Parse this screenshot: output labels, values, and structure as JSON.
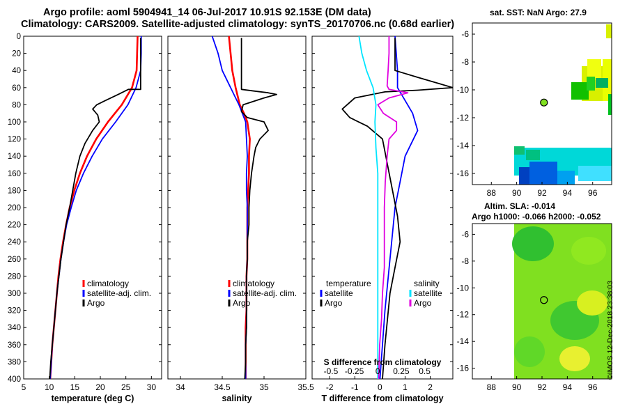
{
  "header": {
    "line1": "Argo profile: aoml 5904941_14 06-Jul-2017 10.91S 92.153E (DM data)",
    "line2": "Climatology: CARS2009. Satellite-adjusted climatology: synTS_20170706.nc (0.68d earlier)"
  },
  "colors": {
    "climatology": "#ff0000",
    "satellite": "#0000ff",
    "argo": "#000000",
    "sat_salinity": "#00e5ff",
    "argo_salinity": "#e000e0"
  },
  "side_maps": {
    "sst": {
      "title": "sat. SST: NaN Argo: 27.9"
    },
    "altimetry": {
      "title1": "Altim. SLA: -0.014",
      "title2": "Argo h1000: -0.066 h2000: -0.052"
    },
    "float_position": {
      "lon": 92.153,
      "lat": -10.91
    }
  },
  "timestamp": "©IMOS 12-Dec-2018 23:38:03",
  "chart_data": [
    {
      "type": "line",
      "name": "temperature",
      "xlabel": "temperature (deg C)",
      "ylabel": "",
      "xlim": [
        5,
        32
      ],
      "ylim": [
        400,
        0
      ],
      "xticks": [
        5,
        10,
        15,
        20,
        25,
        30
      ],
      "yticks": [
        0,
        20,
        40,
        60,
        80,
        100,
        120,
        140,
        160,
        180,
        200,
        220,
        240,
        260,
        280,
        300,
        320,
        340,
        360,
        380,
        400
      ],
      "legend": {
        "position": "bottom-right",
        "entries": [
          "climatology",
          "satellite-adj. clim.",
          "Argo"
        ]
      },
      "series": [
        {
          "name": "climatology",
          "color": "#ff0000",
          "points": [
            [
              27.3,
              0
            ],
            [
              27.2,
              20
            ],
            [
              27.1,
              40
            ],
            [
              26.2,
              60
            ],
            [
              24.2,
              80
            ],
            [
              21.5,
              100
            ],
            [
              19.2,
              120
            ],
            [
              17.4,
              140
            ],
            [
              16.0,
              160
            ],
            [
              14.9,
              180
            ],
            [
              14.0,
              200
            ],
            [
              13.3,
              220
            ],
            [
              12.7,
              240
            ],
            [
              12.2,
              260
            ],
            [
              11.8,
              280
            ],
            [
              11.5,
              300
            ],
            [
              11.2,
              320
            ],
            [
              10.9,
              340
            ],
            [
              10.6,
              360
            ],
            [
              10.4,
              380
            ],
            [
              10.2,
              400
            ]
          ]
        },
        {
          "name": "satellite-adj. clim.",
          "color": "#0000ff",
          "points": [
            [
              28.0,
              0
            ],
            [
              28.0,
              20
            ],
            [
              27.9,
              40
            ],
            [
              27.0,
              60
            ],
            [
              25.4,
              80
            ],
            [
              23.0,
              100
            ],
            [
              20.4,
              120
            ],
            [
              18.4,
              140
            ],
            [
              16.7,
              160
            ],
            [
              15.3,
              180
            ],
            [
              14.3,
              200
            ],
            [
              13.4,
              220
            ],
            [
              12.8,
              240
            ],
            [
              12.3,
              260
            ],
            [
              11.9,
              280
            ],
            [
              11.5,
              300
            ],
            [
              11.2,
              320
            ],
            [
              10.9,
              340
            ],
            [
              10.6,
              360
            ],
            [
              10.4,
              380
            ],
            [
              10.2,
              400
            ]
          ]
        },
        {
          "name": "Argo",
          "color": "#000000",
          "points": [
            [
              27.9,
              2
            ],
            [
              27.9,
              20
            ],
            [
              27.9,
              40
            ],
            [
              27.9,
              55
            ],
            [
              27.9,
              62
            ],
            [
              25.5,
              62
            ],
            [
              23.5,
              68
            ],
            [
              21.0,
              75
            ],
            [
              19.3,
              80
            ],
            [
              18.5,
              85
            ],
            [
              19.5,
              92
            ],
            [
              19.8,
              100
            ],
            [
              18.5,
              110
            ],
            [
              17.0,
              125
            ],
            [
              16.0,
              140
            ],
            [
              15.2,
              160
            ],
            [
              14.6,
              180
            ],
            [
              14.0,
              200
            ],
            [
              13.3,
              220
            ],
            [
              12.8,
              240
            ],
            [
              12.3,
              260
            ],
            [
              11.9,
              280
            ],
            [
              11.5,
              300
            ],
            [
              11.2,
              320
            ],
            [
              10.9,
              340
            ],
            [
              10.6,
              360
            ],
            [
              10.3,
              380
            ],
            [
              10.1,
              400
            ]
          ]
        }
      ]
    },
    {
      "type": "line",
      "name": "salinity",
      "xlabel": "salinity",
      "ylabel": "",
      "xlim": [
        33.85,
        35.5
      ],
      "ylim": [
        400,
        0
      ],
      "xticks": [
        34,
        34.5,
        35,
        35.5
      ],
      "legend": {
        "position": "bottom-right",
        "entries": [
          "climatology",
          "satellite-adj. clim.",
          "Argo"
        ]
      },
      "series": [
        {
          "name": "climatology",
          "color": "#ff0000",
          "points": [
            [
              34.58,
              0
            ],
            [
              34.6,
              20
            ],
            [
              34.62,
              40
            ],
            [
              34.66,
              60
            ],
            [
              34.71,
              80
            ],
            [
              34.76,
              90
            ],
            [
              34.8,
              100
            ],
            [
              34.83,
              120
            ],
            [
              34.82,
              140
            ],
            [
              34.82,
              160
            ],
            [
              34.81,
              180
            ],
            [
              34.8,
              200
            ],
            [
              34.8,
              220
            ],
            [
              34.8,
              240
            ],
            [
              34.8,
              260
            ],
            [
              34.79,
              280
            ],
            [
              34.79,
              300
            ],
            [
              34.79,
              320
            ],
            [
              34.78,
              340
            ],
            [
              34.78,
              360
            ],
            [
              34.78,
              380
            ],
            [
              34.78,
              400
            ]
          ]
        },
        {
          "name": "satellite-adj. clim.",
          "color": "#0000ff",
          "points": [
            [
              34.38,
              0
            ],
            [
              34.45,
              20
            ],
            [
              34.5,
              40
            ],
            [
              34.6,
              60
            ],
            [
              34.65,
              70
            ],
            [
              34.7,
              80
            ],
            [
              34.74,
              90
            ],
            [
              34.78,
              100
            ],
            [
              34.79,
              120
            ],
            [
              34.8,
              140
            ],
            [
              34.79,
              160
            ],
            [
              34.79,
              180
            ],
            [
              34.8,
              200
            ],
            [
              34.8,
              220
            ],
            [
              34.8,
              240
            ],
            [
              34.8,
              260
            ],
            [
              34.79,
              280
            ],
            [
              34.79,
              300
            ],
            [
              34.79,
              320
            ],
            [
              34.79,
              340
            ],
            [
              34.78,
              360
            ],
            [
              34.78,
              380
            ],
            [
              34.78,
              400
            ]
          ]
        },
        {
          "name": "Argo",
          "color": "#000000",
          "points": [
            [
              34.73,
              2
            ],
            [
              34.73,
              20
            ],
            [
              34.73,
              40
            ],
            [
              34.73,
              58
            ],
            [
              34.73,
              62
            ],
            [
              34.88,
              64
            ],
            [
              35.05,
              66
            ],
            [
              35.15,
              68
            ],
            [
              35.0,
              72
            ],
            [
              34.75,
              80
            ],
            [
              34.73,
              88
            ],
            [
              34.8,
              95
            ],
            [
              35.0,
              100
            ],
            [
              35.05,
              110
            ],
            [
              34.95,
              120
            ],
            [
              34.9,
              130
            ],
            [
              34.88,
              140
            ],
            [
              34.85,
              160
            ],
            [
              34.83,
              180
            ],
            [
              34.82,
              200
            ],
            [
              34.82,
              220
            ],
            [
              34.8,
              240
            ],
            [
              34.8,
              260
            ],
            [
              34.79,
              280
            ],
            [
              34.79,
              300
            ],
            [
              34.79,
              320
            ],
            [
              34.79,
              340
            ],
            [
              34.78,
              360
            ],
            [
              34.78,
              380
            ],
            [
              34.77,
              400
            ]
          ]
        }
      ]
    },
    {
      "type": "line",
      "name": "differences",
      "xlabel": "T difference from climatology",
      "x2label": "S difference from climatology",
      "xlim": [
        -2.7,
        2.9
      ],
      "x2lim": [
        -0.7,
        0.8
      ],
      "ylim": [
        400,
        0
      ],
      "xticks": [
        -2,
        -1,
        0,
        1,
        2
      ],
      "x2ticks": [
        -0.5,
        -0.25,
        0,
        0.25,
        0.5
      ],
      "legend": {
        "position": "bottom",
        "temperature_title": "temperature",
        "salinity_title": "salinity",
        "temperature_entries": [
          "satellite",
          "Argo"
        ],
        "salinity_entries": [
          "satellite",
          "Argo"
        ]
      },
      "series": [
        {
          "name": "T satellite",
          "axis": "T",
          "color": "#0000ff",
          "points": [
            [
              0.6,
              0
            ],
            [
              0.65,
              20
            ],
            [
              0.7,
              40
            ],
            [
              0.7,
              60
            ],
            [
              1.0,
              75
            ],
            [
              1.3,
              90
            ],
            [
              1.5,
              110
            ],
            [
              1.0,
              140
            ],
            [
              0.8,
              170
            ],
            [
              0.6,
              200
            ],
            [
              0.5,
              230
            ],
            [
              0.4,
              260
            ],
            [
              0.3,
              290
            ],
            [
              0.2,
              320
            ],
            [
              0.1,
              360
            ],
            [
              0.0,
              400
            ]
          ]
        },
        {
          "name": "T Argo",
          "axis": "T",
          "color": "#000000",
          "points": [
            [
              0.6,
              2
            ],
            [
              0.6,
              20
            ],
            [
              0.6,
              40
            ],
            [
              1.5,
              48
            ],
            [
              2.9,
              60
            ],
            [
              1.5,
              63
            ],
            [
              0.2,
              65
            ],
            [
              -1.0,
              72
            ],
            [
              -1.5,
              85
            ],
            [
              -1.2,
              95
            ],
            [
              -0.5,
              105
            ],
            [
              0.1,
              120
            ],
            [
              0.3,
              150
            ],
            [
              0.5,
              180
            ],
            [
              0.7,
              210
            ],
            [
              0.8,
              240
            ],
            [
              0.6,
              270
            ],
            [
              0.4,
              300
            ],
            [
              0.3,
              330
            ],
            [
              0.2,
              360
            ],
            [
              0.1,
              400
            ]
          ]
        },
        {
          "name": "S satellite",
          "axis": "S",
          "color": "#00e5ff",
          "points": [
            [
              -0.2,
              0
            ],
            [
              -0.17,
              20
            ],
            [
              -0.12,
              40
            ],
            [
              -0.05,
              60
            ],
            [
              -0.02,
              80
            ],
            [
              -0.03,
              100
            ],
            [
              -0.02,
              130
            ],
            [
              0.0,
              160
            ],
            [
              0.0,
              200
            ],
            [
              0.0,
              240
            ],
            [
              0.0,
              280
            ],
            [
              0.0,
              320
            ],
            [
              0.0,
              360
            ],
            [
              0.0,
              400
            ]
          ]
        },
        {
          "name": "S Argo",
          "axis": "S",
          "color": "#e000e0",
          "points": [
            [
              0.12,
              0
            ],
            [
              0.12,
              20
            ],
            [
              0.11,
              40
            ],
            [
              0.1,
              58
            ],
            [
              0.12,
              62
            ],
            [
              0.32,
              66
            ],
            [
              0.12,
              72
            ],
            [
              0.0,
              80
            ],
            [
              0.06,
              90
            ],
            [
              0.2,
              100
            ],
            [
              0.2,
              110
            ],
            [
              0.12,
              120
            ],
            [
              0.1,
              140
            ],
            [
              0.08,
              170
            ],
            [
              0.07,
              200
            ],
            [
              0.07,
              240
            ],
            [
              0.07,
              270
            ],
            [
              0.05,
              300
            ],
            [
              0.04,
              330
            ],
            [
              0.02,
              360
            ],
            [
              0.01,
              400
            ]
          ]
        }
      ]
    },
    {
      "type": "heatmap",
      "name": "sst-map",
      "title": "sat. SST: NaN Argo: 27.9",
      "xlim": [
        86.5,
        97.5
      ],
      "ylim": [
        -16.8,
        -5.2
      ],
      "xticks": [
        88,
        90,
        92,
        94,
        96
      ],
      "yticks": [
        -6,
        -8,
        -10,
        -12,
        -14,
        -16
      ]
    },
    {
      "type": "heatmap",
      "name": "sla-map",
      "title": "Altim. SLA: -0.014",
      "xlim": [
        86.5,
        97.5
      ],
      "ylim": [
        -16.8,
        -5.2
      ],
      "xticks": [
        88,
        90,
        92,
        94,
        96
      ],
      "yticks": [
        -6,
        -8,
        -10,
        -12,
        -14,
        -16
      ]
    }
  ]
}
